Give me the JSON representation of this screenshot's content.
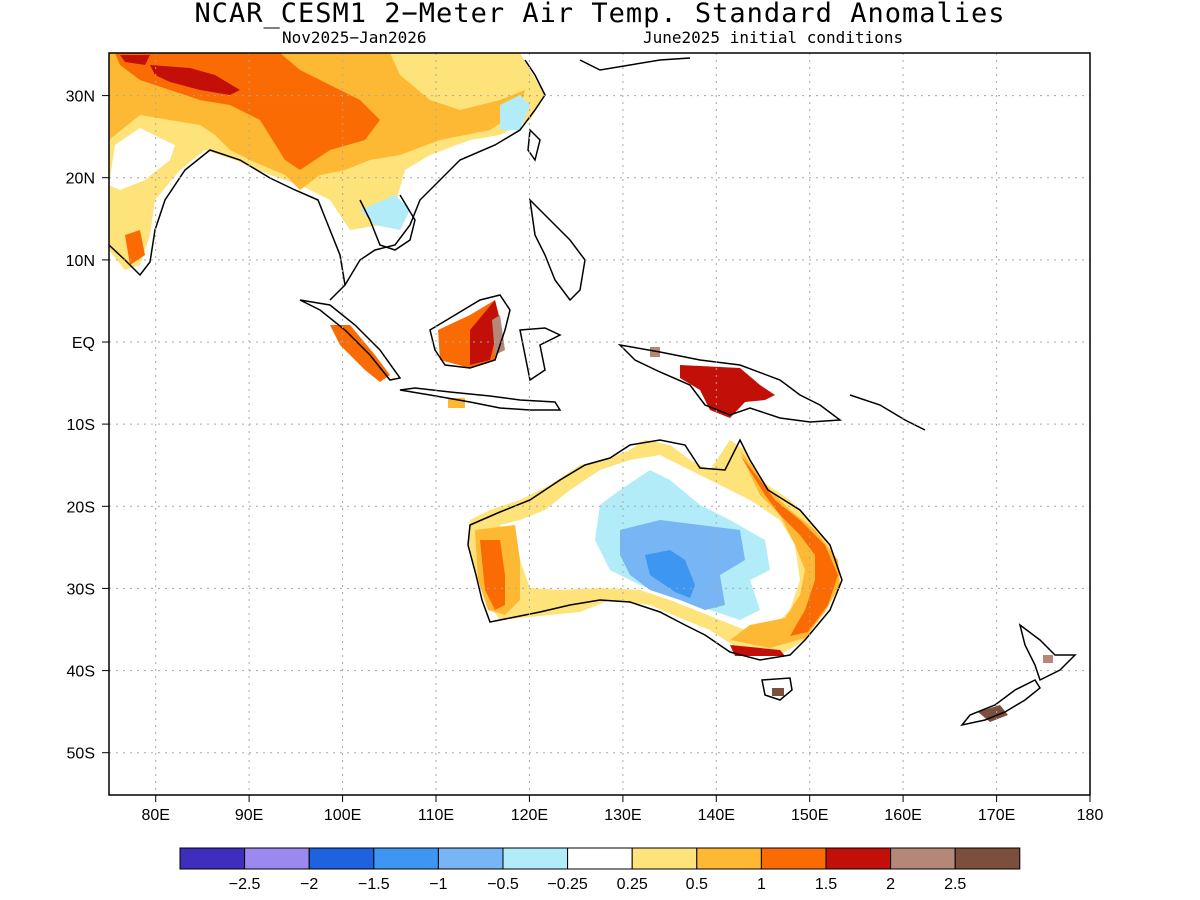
{
  "title": "NCAR_CESM1 2−Meter Air Temp. Standard Anomalies",
  "subtitle_left": "Nov2025−Jan2026",
  "subtitle_right": "June2025 initial conditions",
  "lat_labels": [
    "30N",
    "20N",
    "10N",
    "EQ",
    "10S",
    "20S",
    "30S",
    "40S",
    "50S"
  ],
  "lon_labels": [
    "80E",
    "90E",
    "100E",
    "110E",
    "120E",
    "130E",
    "140E",
    "150E",
    "160E",
    "170E",
    "180"
  ],
  "colorbar": {
    "colors": [
      "#3d2ebd",
      "#9c89f0",
      "#1e62e0",
      "#3c96f2",
      "#77b5f4",
      "#b1ecf8",
      "#ffffff",
      "#fee27a",
      "#fdb933",
      "#fb6b04",
      "#c20f08",
      "#b48778",
      "#7b4e3e"
    ],
    "labels": [
      "−2.5",
      "−2",
      "−1.5",
      "−1",
      "−0.5",
      "−0.25",
      "0.25",
      "0.5",
      "1",
      "1.5",
      "2",
      "2.5"
    ]
  }
}
